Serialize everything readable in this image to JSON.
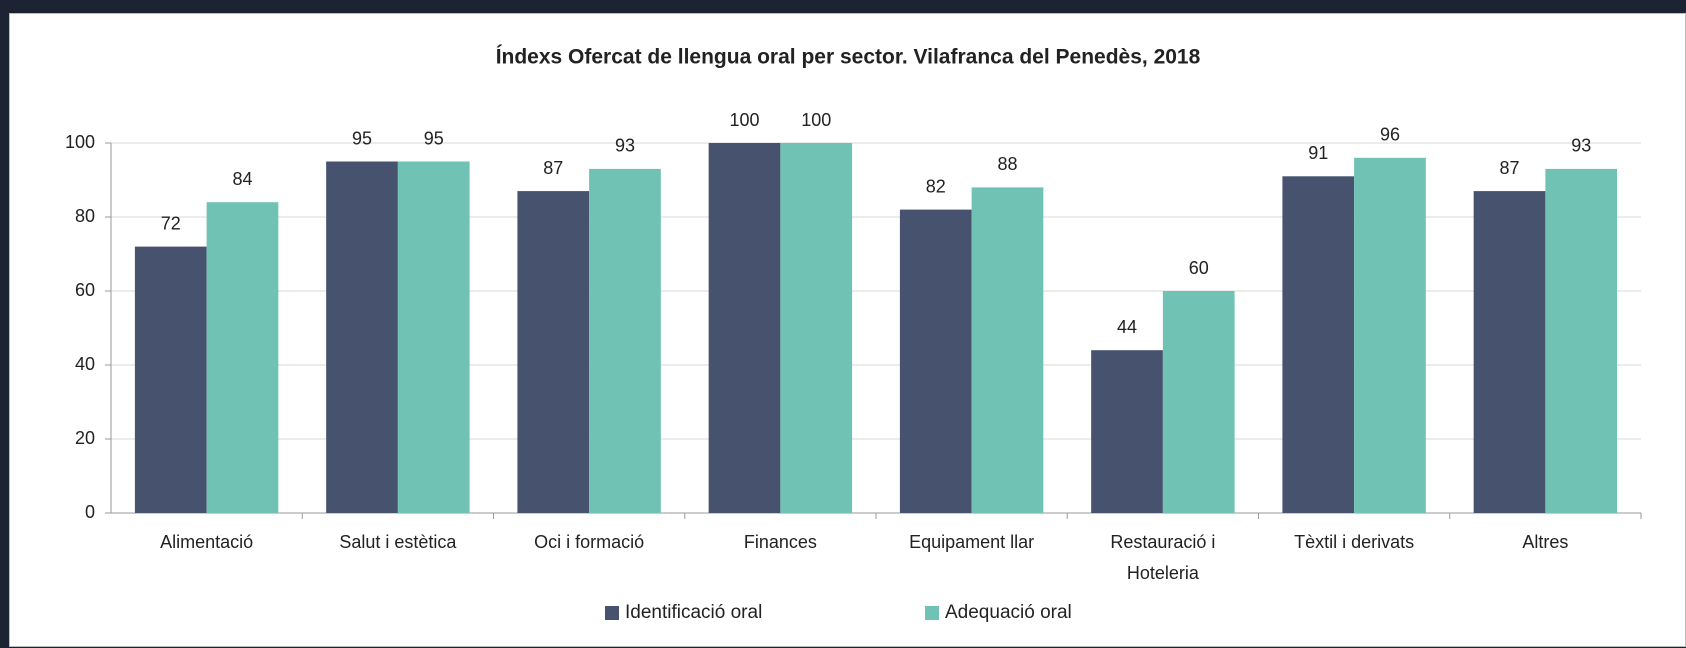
{
  "chart_data": {
    "type": "bar",
    "title": "Índexs Ofercat de llengua oral per sector. Vilafranca del Penedès, 2018",
    "categories": [
      "Alimentació",
      "Salut i estètica",
      "Oci i formació",
      "Finances",
      "Equipament llar",
      "Restauració i Hoteleria",
      "Tèxtil i derivats",
      "Altres"
    ],
    "series": [
      {
        "name": "Identificació oral",
        "color": "#46526e",
        "values": [
          72,
          95,
          87,
          100,
          82,
          44,
          91,
          87
        ]
      },
      {
        "name": "Adequació oral",
        "color": "#70c2b4",
        "values": [
          84,
          95,
          93,
          100,
          88,
          60,
          96,
          93
        ]
      }
    ],
    "ylim": [
      0,
      100
    ],
    "yticks": [
      0,
      20,
      40,
      60,
      80,
      100
    ],
    "grid": true,
    "legend": "bottom"
  }
}
